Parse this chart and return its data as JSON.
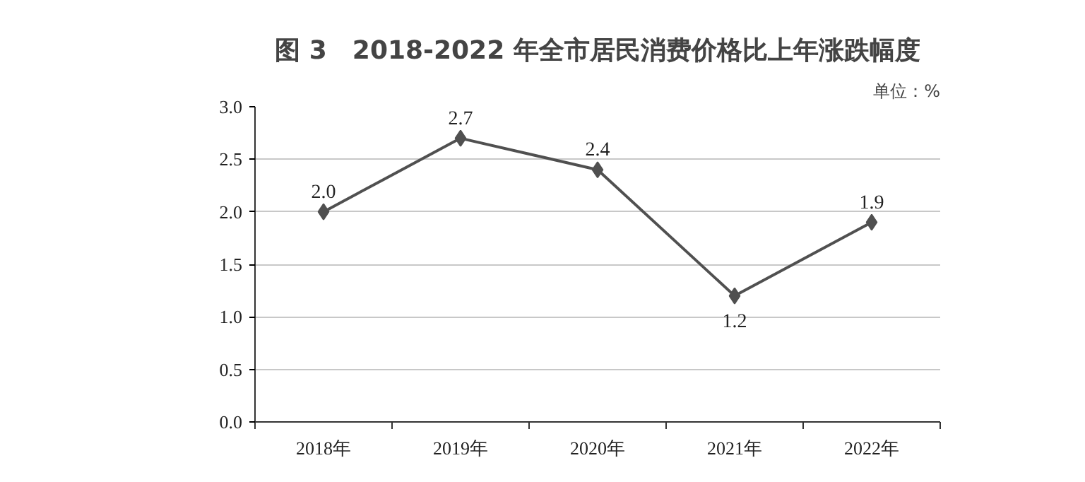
{
  "chart_data": {
    "type": "line",
    "title": "图 3　2018-2022 年全市居民消费价格比上年涨跌幅度",
    "annotations": [
      "单位：%"
    ],
    "categories": [
      "2018年",
      "2019年",
      "2020年",
      "2021年",
      "2022年"
    ],
    "series": [
      {
        "color": "#505050",
        "values": [
          2.0,
          2.7,
          2.4,
          1.2,
          1.9
        ],
        "value_labels": [
          "2.0",
          "2.7",
          "2.4",
          "1.2",
          "1.9"
        ]
      }
    ],
    "ylim": [
      0,
      3.0
    ],
    "yticks": [
      {
        "value": 0,
        "label": "0.0"
      },
      {
        "value": 0.5,
        "label": "0.5"
      },
      {
        "value": 1.0,
        "label": "1.0"
      },
      {
        "value": 1.5,
        "label": "1.5"
      },
      {
        "value": 2.0,
        "label": "2.0"
      },
      {
        "value": 2.5,
        "label": "2.5"
      },
      {
        "value": 3.0,
        "label": "3.0"
      }
    ],
    "grid": "y",
    "marker": "diamond",
    "line_style": "solid"
  }
}
